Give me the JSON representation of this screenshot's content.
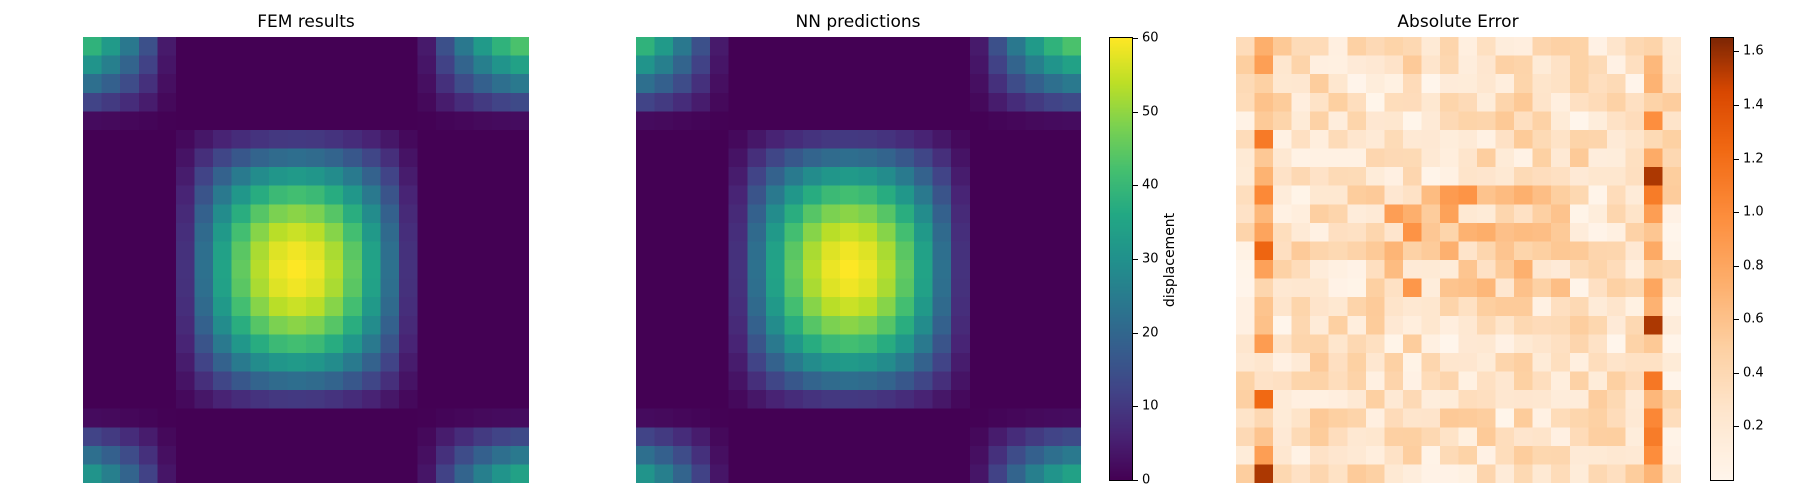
{
  "chart_data": [
    {
      "type": "heatmap",
      "title": "FEM results",
      "grid": [
        24,
        24
      ],
      "colormap": "viridis",
      "value_range": [
        0,
        60
      ],
      "field": {
        "peak": 60,
        "peak_cell": [
          12,
          11
        ],
        "shape": "sin-bump"
      }
    },
    {
      "type": "heatmap",
      "title": "NN predictions",
      "grid": [
        24,
        24
      ],
      "colormap": "viridis",
      "value_range": [
        0,
        60
      ],
      "field": {
        "peak": 60,
        "peak_cell": [
          12,
          11
        ],
        "shape": "sin-bump"
      },
      "colorbar": {
        "label": "displacement",
        "ticks": [
          0,
          10,
          20,
          30,
          40,
          50,
          60
        ],
        "tick_labels": [
          "0",
          "10",
          "20",
          "30",
          "40",
          "50",
          "60"
        ]
      }
    },
    {
      "type": "heatmap",
      "title": "Absolute Error",
      "grid": [
        24,
        24
      ],
      "colormap": "oranges",
      "value_range": [
        0,
        1.65
      ],
      "colorbar": {
        "label": "",
        "ticks": [
          0.2,
          0.4,
          0.6,
          0.8,
          1.0,
          1.2,
          1.4,
          1.6
        ],
        "tick_labels": [
          "0.2",
          "0.4",
          "0.6",
          "0.8",
          "1.0",
          "1.2",
          "1.4",
          "1.6"
        ]
      }
    }
  ]
}
